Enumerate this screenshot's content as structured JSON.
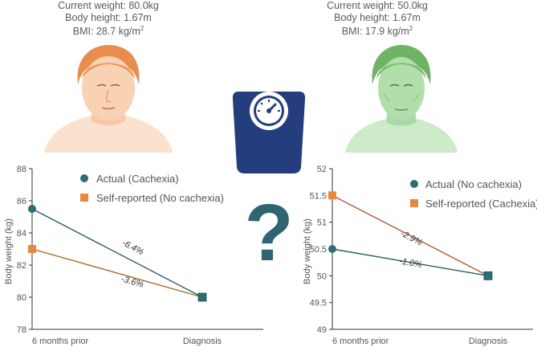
{
  "patients": {
    "left": {
      "weight": "Current weight: 80.0kg",
      "height": "Body height: 1.67m",
      "bmi_prefix": "BMI: 28.7 kg/m",
      "bmi_sup": "2"
    },
    "right": {
      "weight": "Current weight: 50.0kg",
      "height": "Body height: 1.67m",
      "bmi_prefix": "BMI: 17.9 kg/m",
      "bmi_sup": "2"
    }
  },
  "center": {
    "question_mark": "?"
  },
  "colors": {
    "actual": "#2c6e72",
    "self_reported": "#e8883a",
    "left_line_actual": "#2c5d63",
    "left_line_self": "#a8692b",
    "right_line_actual": "#2c5d63",
    "right_line_self": "#b15a38",
    "skin_left": "#f7c9a6",
    "skin_right": "#a6d8a2",
    "scale": "#243d7d",
    "question": "#2d6570"
  },
  "chart_data": [
    {
      "type": "line",
      "ylabel": "Body weight (kg)",
      "xlabel": "",
      "categories": [
        "6 months prior",
        "Diagnosis"
      ],
      "ylim": [
        78,
        88
      ],
      "yticks": [
        "78",
        "80",
        "82",
        "84",
        "86",
        "88"
      ],
      "series": [
        {
          "name": "Actual (Cachexia)",
          "marker": "circle",
          "values": [
            85.5,
            80.0
          ],
          "label": "-6.4%"
        },
        {
          "name": "Self-reported (No cachexia)",
          "marker": "square",
          "values": [
            83.0,
            80.0
          ],
          "label": "-3.6%"
        }
      ]
    },
    {
      "type": "line",
      "ylabel": "Body weight (kg)",
      "xlabel": "",
      "categories": [
        "6 months prior",
        "Diagnosis"
      ],
      "ylim": [
        49,
        52
      ],
      "yticks": [
        "49",
        "49.5",
        "50",
        "50.5",
        "51",
        "51.5",
        "52"
      ],
      "series": [
        {
          "name": "Actual (No cachexia)",
          "marker": "circle",
          "values": [
            50.5,
            50.0
          ],
          "label": "-1.0%"
        },
        {
          "name": "Self-reported (Cachexia)",
          "marker": "square",
          "values": [
            51.5,
            50.0
          ],
          "label": "-2.9%"
        }
      ]
    }
  ]
}
